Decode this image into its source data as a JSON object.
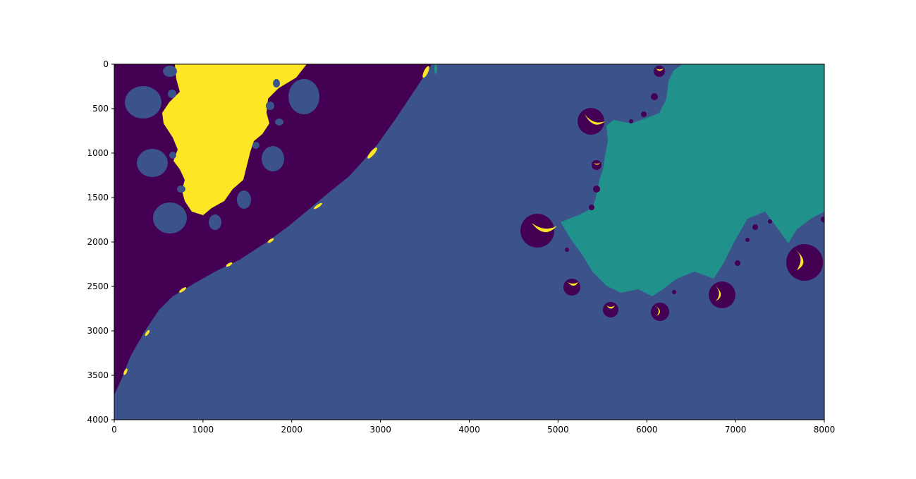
{
  "chart_data": {
    "type": "heatmap",
    "title": "",
    "xlabel": "",
    "ylabel": "",
    "xlim": [
      0,
      8000
    ],
    "ylim": [
      4000,
      0
    ],
    "x_ticks": [
      0,
      1000,
      2000,
      3000,
      4000,
      5000,
      6000,
      7000,
      8000
    ],
    "y_ticks": [
      0,
      500,
      1000,
      1500,
      2000,
      2500,
      3000,
      3500,
      4000
    ],
    "x_tick_labels": [
      "0",
      "1000",
      "2000",
      "3000",
      "4000",
      "5000",
      "6000",
      "7000",
      "8000"
    ],
    "y_tick_labels": [
      "0",
      "500",
      "1000",
      "1500",
      "2000",
      "2500",
      "3000",
      "3500",
      "4000"
    ],
    "colormap": "viridis",
    "classes": [
      {
        "level": 0,
        "color": "#440154"
      },
      {
        "level": 1,
        "color": "#3b528b"
      },
      {
        "level": 2,
        "color": "#21918c"
      },
      {
        "level": 3,
        "color": "#fde725"
      }
    ],
    "grid": false,
    "legend": "none"
  }
}
